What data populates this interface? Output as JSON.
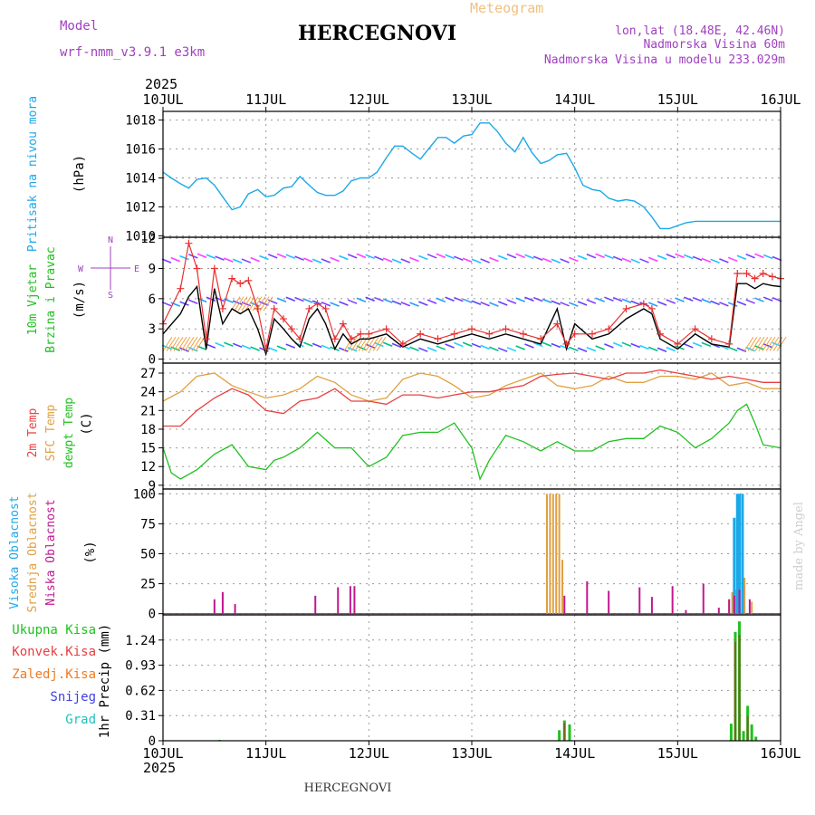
{
  "header": {
    "model_label": "Model",
    "model_name": "wrf-nmm_v3.9.1  e3km",
    "station": "HERCEGNOVI",
    "chart_type": "Meteogram",
    "coords": "lon,lat (18.48E, 42.46N)",
    "elevation": "Nadmorska Visina 60m",
    "model_elevation": "Nadmorska Visina u modelu 233.029m",
    "year": "2025"
  },
  "footer": {
    "station": "HERCEGNOVI",
    "year": "2025",
    "credit": "made by Angel"
  },
  "colors": {
    "pressure": "#1ca8e8",
    "wind_speed": "#000000",
    "gust": "#e83030",
    "t2m": "#e84040",
    "sfc": "#e0a040",
    "dewpt": "#20c020",
    "high_cloud": "#1ca8e8",
    "mid_cloud": "#e0a040",
    "low_cloud": "#c01890",
    "precip_total": "#20c020",
    "precip_conv": "#e84040",
    "precip_ice": "#f07a20",
    "snow": "#4040e0",
    "hail": "#20c0c0"
  },
  "chart_data": [
    {
      "type": "line",
      "id": "pressure",
      "ylabel": "Pritisak na nivou mora",
      "unit": "(hPa)",
      "x": [
        0,
        0.08,
        0.17,
        0.25,
        0.33,
        0.42,
        0.5,
        0.58,
        0.67,
        0.75,
        0.83,
        0.92,
        1.0,
        1.08,
        1.17,
        1.25,
        1.33,
        1.42,
        1.5,
        1.58,
        1.67,
        1.75,
        1.83,
        1.92,
        2.0,
        2.08,
        2.17,
        2.25,
        2.33,
        2.42,
        2.5,
        2.58,
        2.67,
        2.75,
        2.83,
        2.92,
        3.0,
        3.08,
        3.17,
        3.25,
        3.33,
        3.42,
        3.5,
        3.58,
        3.67,
        3.75,
        3.83,
        3.92,
        4.0,
        4.08,
        4.17,
        4.25,
        4.33,
        4.42,
        4.5,
        4.58,
        4.67,
        4.75,
        4.83,
        4.92,
        5.0,
        5.08,
        5.17,
        5.25,
        5.33,
        5.42,
        5.5,
        5.58,
        5.67,
        5.75,
        5.83,
        5.92,
        6.0
      ],
      "values": [
        1014.4,
        1014.0,
        1013.6,
        1013.3,
        1013.9,
        1014.0,
        1013.5,
        1012.7,
        1011.8,
        1012.0,
        1012.9,
        1013.2,
        1012.7,
        1012.8,
        1013.3,
        1013.4,
        1014.1,
        1013.5,
        1013.0,
        1012.8,
        1012.8,
        1013.1,
        1013.8,
        1014.0,
        1014.0,
        1014.4,
        1015.4,
        1016.2,
        1016.2,
        1015.7,
        1015.3,
        1016.0,
        1016.8,
        1016.8,
        1016.4,
        1016.9,
        1017.0,
        1017.8,
        1017.8,
        1017.2,
        1016.4,
        1015.8,
        1016.8,
        1015.8,
        1015.0,
        1015.2,
        1015.6,
        1015.7,
        1014.7,
        1013.5,
        1013.2,
        1013.1,
        1012.6,
        1012.4,
        1012.5,
        1012.4,
        1012.0,
        1011.3,
        1010.5,
        1010.5,
        1010.7,
        1010.9,
        1011.0,
        1011.0,
        1011.0,
        1011.0,
        1011.0,
        1011.0,
        1011.0,
        1011.0,
        1011.0,
        1011.0,
        1011.0
      ],
      "yticks": [
        1010,
        1012,
        1014,
        1016,
        1018
      ],
      "ylim": [
        1009.9,
        1018.6
      ]
    },
    {
      "type": "line",
      "id": "wind",
      "ylabel": [
        "10m Vjetar",
        "Brzina i Pravac"
      ],
      "unit": "(m/s)",
      "compass": [
        "N",
        "S",
        "W",
        "E"
      ],
      "series": [
        {
          "name": "speed",
          "x": [
            0,
            0.17,
            0.25,
            0.33,
            0.42,
            0.5,
            0.58,
            0.67,
            0.75,
            0.83,
            0.92,
            1.0,
            1.08,
            1.17,
            1.25,
            1.33,
            1.42,
            1.5,
            1.58,
            1.67,
            1.75,
            1.83,
            1.92,
            2.0,
            2.17,
            2.33,
            2.5,
            2.67,
            2.83,
            3.0,
            3.17,
            3.33,
            3.5,
            3.67,
            3.83,
            3.92,
            4.0,
            4.17,
            4.33,
            4.5,
            4.67,
            4.75,
            4.83,
            5.0,
            5.17,
            5.33,
            5.5,
            5.58,
            5.67,
            5.75,
            5.83,
            5.92,
            6.0
          ],
          "values": [
            2.5,
            4.5,
            6.2,
            7.2,
            1.0,
            7.0,
            3.5,
            5.0,
            4.5,
            5.0,
            3.0,
            0.5,
            4.0,
            3.0,
            2.0,
            1.2,
            4.0,
            5.0,
            3.5,
            1.0,
            2.5,
            1.5,
            2.0,
            2.0,
            2.5,
            1.2,
            2.0,
            1.5,
            2.0,
            2.5,
            2.0,
            2.5,
            2.0,
            1.5,
            5.0,
            1.0,
            3.5,
            2.0,
            2.5,
            4.0,
            5.0,
            4.5,
            2.0,
            1.0,
            2.5,
            1.5,
            1.2,
            7.5,
            7.5,
            7.0,
            7.5,
            7.3,
            7.2
          ]
        },
        {
          "name": "gust",
          "x": [
            0,
            0.17,
            0.25,
            0.33,
            0.42,
            0.5,
            0.58,
            0.67,
            0.75,
            0.83,
            0.92,
            1.0,
            1.08,
            1.17,
            1.25,
            1.33,
            1.42,
            1.5,
            1.58,
            1.67,
            1.75,
            1.83,
            1.92,
            2.0,
            2.17,
            2.33,
            2.5,
            2.67,
            2.83,
            3.0,
            3.17,
            3.33,
            3.5,
            3.67,
            3.83,
            3.92,
            4.0,
            4.17,
            4.33,
            4.5,
            4.67,
            4.75,
            4.83,
            5.0,
            5.17,
            5.33,
            5.5,
            5.58,
            5.67,
            5.75,
            5.83,
            5.92,
            6.0
          ],
          "values": [
            3.5,
            7.0,
            11.5,
            9.0,
            2.0,
            9.0,
            5.0,
            8.0,
            7.5,
            7.8,
            5.0,
            1.0,
            5.0,
            4.0,
            3.0,
            2.0,
            5.0,
            5.5,
            5.0,
            2.0,
            3.5,
            2.0,
            2.5,
            2.5,
            3.0,
            1.5,
            2.5,
            2.0,
            2.5,
            3.0,
            2.5,
            3.0,
            2.5,
            2.0,
            3.5,
            1.5,
            2.5,
            2.5,
            3.0,
            5.0,
            5.5,
            5.0,
            2.5,
            1.5,
            3.0,
            2.0,
            1.5,
            8.5,
            8.5,
            8.0,
            8.5,
            8.2,
            8.0
          ]
        }
      ],
      "yticks": [
        0,
        3,
        6,
        9,
        12
      ],
      "ylim": [
        -0.4,
        12.1
      ]
    },
    {
      "type": "line",
      "id": "temperature",
      "ylabel": [
        "2m Temp",
        "SFC Temp",
        "dewpt Temp"
      ],
      "unit": "(C)",
      "series": [
        {
          "name": "2m Temp",
          "x": [
            0,
            0.17,
            0.33,
            0.5,
            0.67,
            0.83,
            1.0,
            1.17,
            1.33,
            1.5,
            1.67,
            1.83,
            2.0,
            2.17,
            2.33,
            2.5,
            2.67,
            2.83,
            3.0,
            3.17,
            3.33,
            3.5,
            3.67,
            3.83,
            4.0,
            4.17,
            4.33,
            4.5,
            4.67,
            4.83,
            5.0,
            5.17,
            5.33,
            5.5,
            5.67,
            5.83,
            6.0
          ],
          "values": [
            18.5,
            18.5,
            21.0,
            23.0,
            24.5,
            23.5,
            21.0,
            20.5,
            22.5,
            23.0,
            24.5,
            22.5,
            22.5,
            22.0,
            23.5,
            23.5,
            23.0,
            23.5,
            24.0,
            24.0,
            24.5,
            25.0,
            26.5,
            26.8,
            27.0,
            26.5,
            26.0,
            27.0,
            27.0,
            27.5,
            27.0,
            26.5,
            26.0,
            26.5,
            26.0,
            25.5,
            25.5
          ]
        },
        {
          "name": "SFC Temp",
          "x": [
            0,
            0.17,
            0.33,
            0.5,
            0.67,
            0.83,
            1.0,
            1.17,
            1.33,
            1.5,
            1.67,
            1.83,
            2.0,
            2.17,
            2.33,
            2.5,
            2.67,
            2.83,
            3.0,
            3.17,
            3.33,
            3.5,
            3.67,
            3.83,
            4.0,
            4.17,
            4.33,
            4.5,
            4.67,
            4.83,
            5.0,
            5.17,
            5.33,
            5.5,
            5.67,
            5.83,
            6.0
          ],
          "values": [
            22.5,
            24.0,
            26.5,
            27.0,
            25.0,
            24.0,
            23.0,
            23.5,
            24.5,
            26.5,
            25.5,
            23.5,
            22.5,
            23.0,
            26.0,
            27.0,
            26.5,
            25.0,
            23.0,
            23.5,
            25.0,
            26.0,
            27.0,
            25.0,
            24.5,
            25.0,
            26.5,
            25.5,
            25.5,
            26.5,
            26.5,
            26.0,
            27.0,
            25.0,
            25.5,
            24.5,
            24.5
          ]
        },
        {
          "name": "dewpt Temp",
          "x": [
            0,
            0.08,
            0.17,
            0.33,
            0.5,
            0.67,
            0.83,
            1.0,
            1.08,
            1.17,
            1.33,
            1.5,
            1.67,
            1.83,
            2.0,
            2.17,
            2.33,
            2.5,
            2.67,
            2.83,
            3.0,
            3.08,
            3.17,
            3.33,
            3.5,
            3.67,
            3.83,
            4.0,
            4.17,
            4.33,
            4.5,
            4.67,
            4.83,
            5.0,
            5.17,
            5.33,
            5.5,
            5.58,
            5.67,
            5.75,
            5.83,
            6.0
          ],
          "values": [
            15.0,
            11.0,
            10.0,
            11.5,
            14.0,
            15.5,
            12.0,
            11.5,
            13.0,
            13.5,
            15.0,
            17.5,
            15.0,
            15.0,
            12.0,
            13.5,
            17.0,
            17.5,
            17.5,
            19.0,
            15.0,
            10.0,
            13.0,
            17.0,
            16.0,
            14.5,
            16.0,
            14.5,
            14.5,
            16.0,
            16.5,
            16.5,
            18.5,
            17.5,
            15.0,
            16.5,
            19.0,
            21.0,
            22.0,
            19.0,
            15.5,
            15.0
          ]
        }
      ],
      "yticks": [
        9,
        12,
        15,
        18,
        21,
        24,
        27
      ],
      "ylim": [
        8.4,
        28.6
      ]
    },
    {
      "type": "bar",
      "id": "clouds",
      "ylabel": [
        "Visoka Oblacnost",
        "Srednja Oblacnost",
        "Niska Oblacnost"
      ],
      "unit": "(%)",
      "series": [
        {
          "name": "Visoka Oblacnost",
          "x": [
            5.55,
            5.58,
            5.6,
            5.63
          ],
          "values": [
            80,
            100,
            100,
            100
          ]
        },
        {
          "name": "Srednja Oblacnost",
          "x": [
            3.73,
            3.76,
            3.79,
            3.82,
            3.85,
            3.88,
            5.5,
            5.53,
            5.57,
            5.6,
            5.65,
            5.72
          ],
          "values": [
            100,
            100,
            100,
            100,
            100,
            45,
            12,
            18,
            20,
            25,
            30,
            10
          ]
        },
        {
          "name": "Niska Oblacnost",
          "x": [
            0.5,
            0.58,
            0.7,
            1.48,
            1.7,
            1.82,
            1.86,
            3.9,
            4.12,
            4.33,
            4.63,
            4.75,
            4.95,
            5.08,
            5.25,
            5.4,
            5.5,
            5.55,
            5.6,
            5.7
          ],
          "values": [
            12,
            18,
            8,
            15,
            22,
            23,
            23,
            15,
            27,
            19,
            22,
            14,
            23,
            3,
            25,
            5,
            12,
            15,
            20,
            12
          ]
        }
      ],
      "yticks": [
        0,
        25,
        50,
        75,
        100
      ],
      "ylim": [
        -1,
        104
      ]
    },
    {
      "type": "bar",
      "id": "precip",
      "ylabel": [
        "Ukupna Kisa",
        "Konvek.Kisa",
        "Zaledj.Kisa",
        "Snijeg",
        "Grad"
      ],
      "unit": "1hr Precip (mm)",
      "series": [
        {
          "name": "Ukupna Kisa",
          "x": [
            0.55,
            3.85,
            3.9,
            3.95,
            5.52,
            5.56,
            5.6,
            5.64,
            5.68,
            5.72,
            5.76
          ],
          "values": [
            0.01,
            0.13,
            0.25,
            0.2,
            0.21,
            1.34,
            1.47,
            0.12,
            0.43,
            0.2,
            0.05
          ]
        },
        {
          "name": "Konvek.Kisa",
          "x": [
            3.9,
            5.56,
            5.6,
            5.68
          ],
          "values": [
            0.22,
            1.22,
            1.3,
            0.3
          ]
        }
      ],
      "yticks": [
        0,
        0.31,
        0.62,
        0.93,
        1.24
      ],
      "ylim": [
        0,
        1.55
      ]
    }
  ],
  "x_axis": {
    "ticks": [
      "10JUL",
      "11JUL",
      "12JUL",
      "13JUL",
      "14JUL",
      "15JUL",
      "16JUL"
    ]
  }
}
